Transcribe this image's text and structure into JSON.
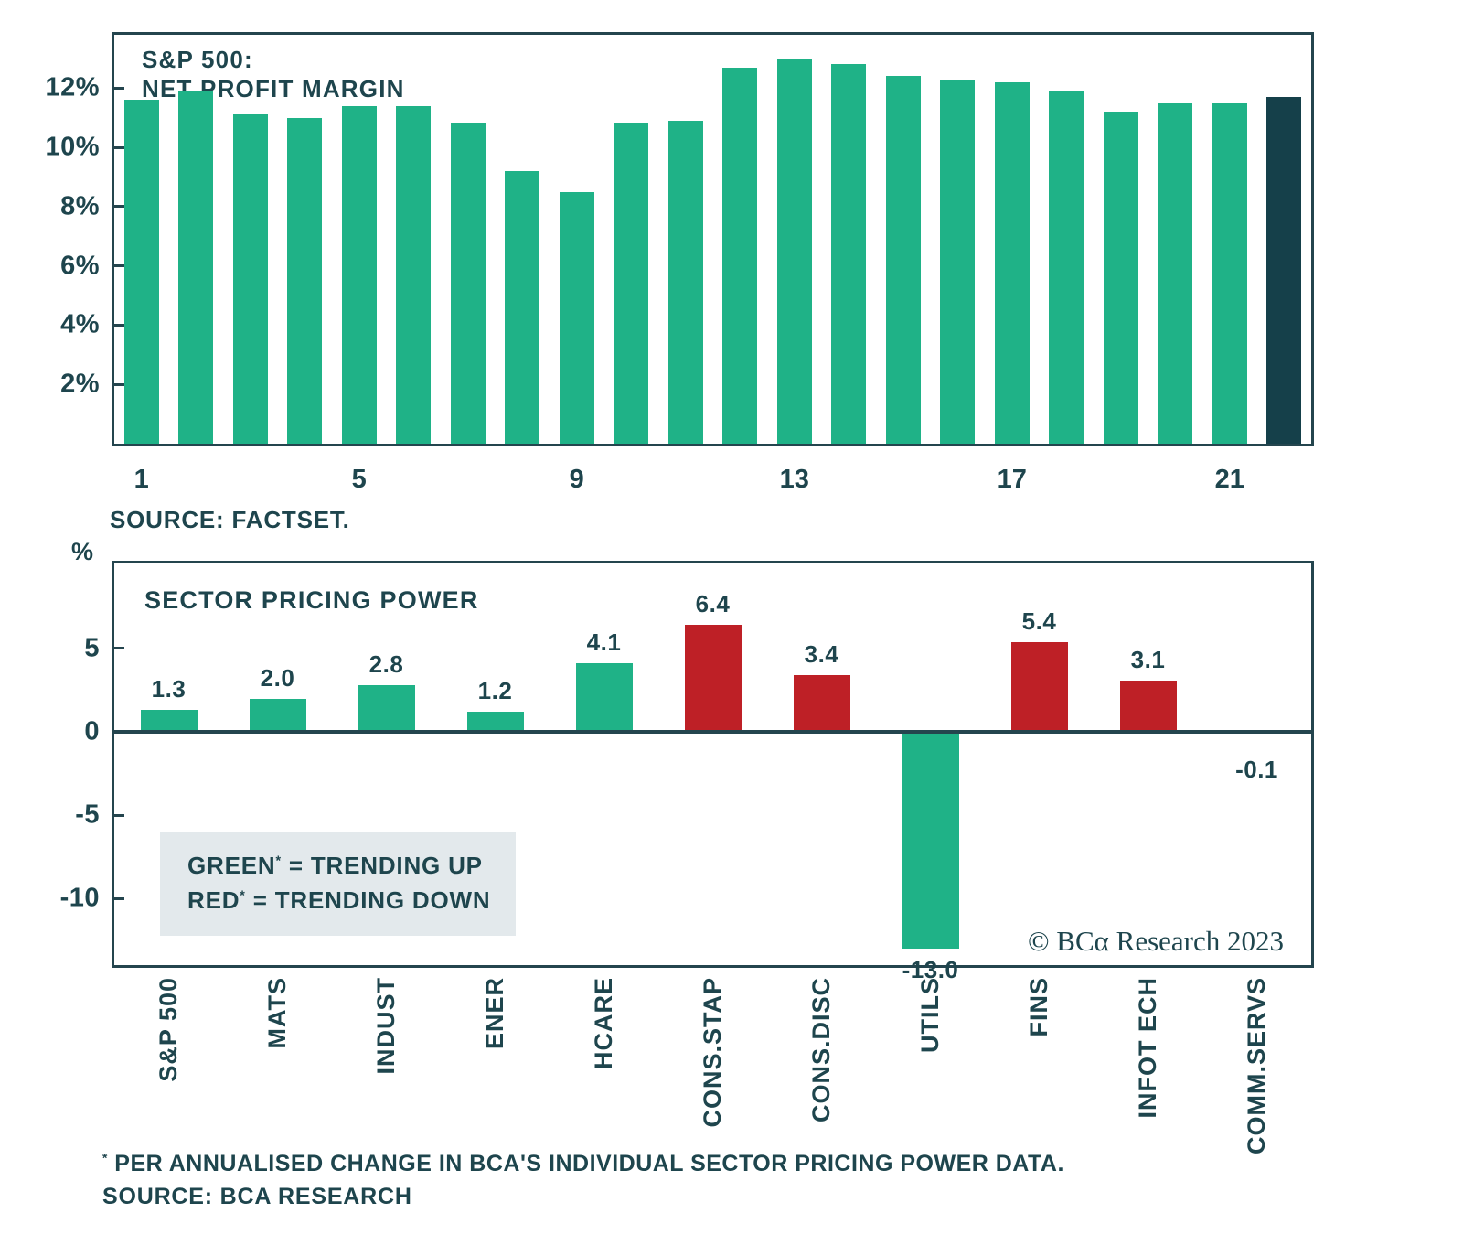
{
  "colors": {
    "green": "#1FB287",
    "red": "#BE2026",
    "dark": "#15404A",
    "frame": "#24454E",
    "text": "#1E454D",
    "legend_bg": "#E3E9EC",
    "background": "#FFFFFF"
  },
  "chart_data": [
    {
      "type": "bar",
      "title_lines": [
        "S&P 500:",
        "NET PROFIT MARGIN"
      ],
      "x": [
        1,
        2,
        3,
        4,
        5,
        6,
        7,
        8,
        9,
        10,
        11,
        12,
        13,
        14,
        15,
        16,
        17,
        18,
        19,
        20,
        21,
        22
      ],
      "values": [
        11.6,
        11.9,
        11.1,
        11.0,
        11.4,
        11.4,
        10.8,
        9.2,
        8.5,
        10.8,
        10.9,
        12.7,
        13.0,
        12.8,
        12.4,
        12.3,
        12.2,
        11.9,
        11.2,
        11.5,
        11.5,
        11.7
      ],
      "highlight_index": 21,
      "highlight_color": "dark",
      "bar_color": "green",
      "ylim": [
        0,
        13.8
      ],
      "yticks": [
        {
          "v": 12,
          "label": "12%"
        },
        {
          "v": 10,
          "label": "10%"
        },
        {
          "v": 8,
          "label": "8%"
        },
        {
          "v": 6,
          "label": "6%"
        },
        {
          "v": 4,
          "label": "4%"
        },
        {
          "v": 2,
          "label": "2%"
        }
      ],
      "xticks": [
        {
          "index": 0,
          "label": "1"
        },
        {
          "index": 4,
          "label": "5"
        },
        {
          "index": 8,
          "label": "9"
        },
        {
          "index": 12,
          "label": "13"
        },
        {
          "index": 16,
          "label": "17"
        },
        {
          "index": 20,
          "label": "21"
        }
      ],
      "grid": false,
      "source": "SOURCE: FACTSET."
    },
    {
      "type": "bar",
      "title": "SECTOR PRICING POWER",
      "ylabel": "%",
      "categories": [
        "S&P 500",
        "MATS",
        "INDUST",
        "ENER",
        "HCARE",
        "CONS.STAP",
        "CONS.DISC",
        "UTILS",
        "FINS",
        "INFOT ECH",
        "COMM.SERVS"
      ],
      "values": [
        1.3,
        2.0,
        2.8,
        1.2,
        4.1,
        6.4,
        3.4,
        -13.0,
        5.4,
        3.1,
        -0.1
      ],
      "value_labels": [
        "1.3",
        "2.0",
        "2.8",
        "1.2",
        "4.1",
        "6.4",
        "3.4",
        "-13.0",
        "5.4",
        "3.1",
        "-0.1"
      ],
      "bar_colors": [
        "green",
        "green",
        "green",
        "green",
        "green",
        "red",
        "red",
        "green",
        "red",
        "red",
        "none"
      ],
      "ylim": [
        -14,
        10.1
      ],
      "yticks": [
        {
          "v": 5,
          "label": "5"
        },
        {
          "v": 0,
          "label": "0"
        },
        {
          "v": -5,
          "label": "-5"
        },
        {
          "v": -10,
          "label": "-10"
        }
      ],
      "grid": false,
      "legend": {
        "lines": [
          {
            "name": "GREEN",
            "sup": "*",
            "text": " = TRENDING UP"
          },
          {
            "name": "RED",
            "sup": "*",
            "text": " = TRENDING DOWN"
          }
        ]
      },
      "copyright": "© BCα Research 2023",
      "footnote": {
        "sup": "*",
        "text": " PER ANNUALISED CHANGE IN BCA'S INDIVIDUAL SECTOR PRICING POWER DATA."
      },
      "source": "SOURCE: BCA RESEARCH"
    }
  ]
}
